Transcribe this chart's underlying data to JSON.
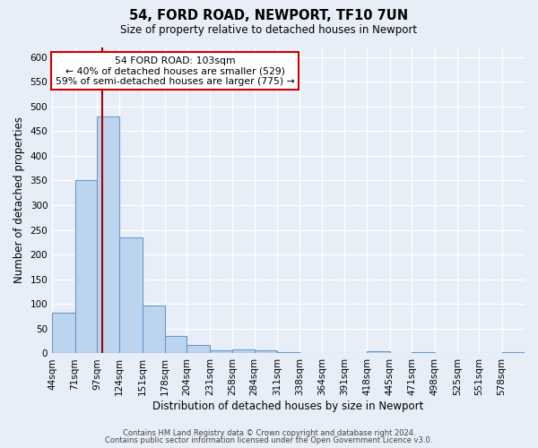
{
  "title": "54, FORD ROAD, NEWPORT, TF10 7UN",
  "subtitle": "Size of property relative to detached houses in Newport",
  "xlabel": "Distribution of detached houses by size in Newport",
  "ylabel": "Number of detached properties",
  "bar_values": [
    83,
    350,
    480,
    235,
    97,
    35,
    17,
    7,
    8,
    6,
    3,
    0,
    0,
    0,
    5,
    0,
    3,
    0,
    0,
    0,
    3
  ],
  "bin_edges": [
    44,
    71,
    97,
    124,
    151,
    178,
    204,
    231,
    258,
    284,
    311,
    338,
    364,
    391,
    418,
    445,
    471,
    498,
    525,
    551,
    578,
    605
  ],
  "bin_labels": [
    "44sqm",
    "71sqm",
    "97sqm",
    "124sqm",
    "151sqm",
    "178sqm",
    "204sqm",
    "231sqm",
    "258sqm",
    "284sqm",
    "311sqm",
    "338sqm",
    "364sqm",
    "391sqm",
    "418sqm",
    "445sqm",
    "471sqm",
    "498sqm",
    "525sqm",
    "551sqm",
    "578sqm"
  ],
  "bar_color": "#bdd4ee",
  "bar_edge_color": "#6699cc",
  "vline_x": 103,
  "vline_color": "#aa0000",
  "annotation_title": "54 FORD ROAD: 103sqm",
  "annotation_line1": "← 40% of detached houses are smaller (529)",
  "annotation_line2": "59% of semi-detached houses are larger (775) →",
  "annotation_box_color": "#ffffff",
  "annotation_box_edge": "#cc0000",
  "ylim": [
    0,
    620
  ],
  "yticks": [
    0,
    50,
    100,
    150,
    200,
    250,
    300,
    350,
    400,
    450,
    500,
    550,
    600
  ],
  "bg_color": "#e8eef8",
  "plot_bg_color": "#e8eef8",
  "grid_color": "#ffffff",
  "footer1": "Contains HM Land Registry data © Crown copyright and database right 2024.",
  "footer2": "Contains public sector information licensed under the Open Government Licence v3.0."
}
